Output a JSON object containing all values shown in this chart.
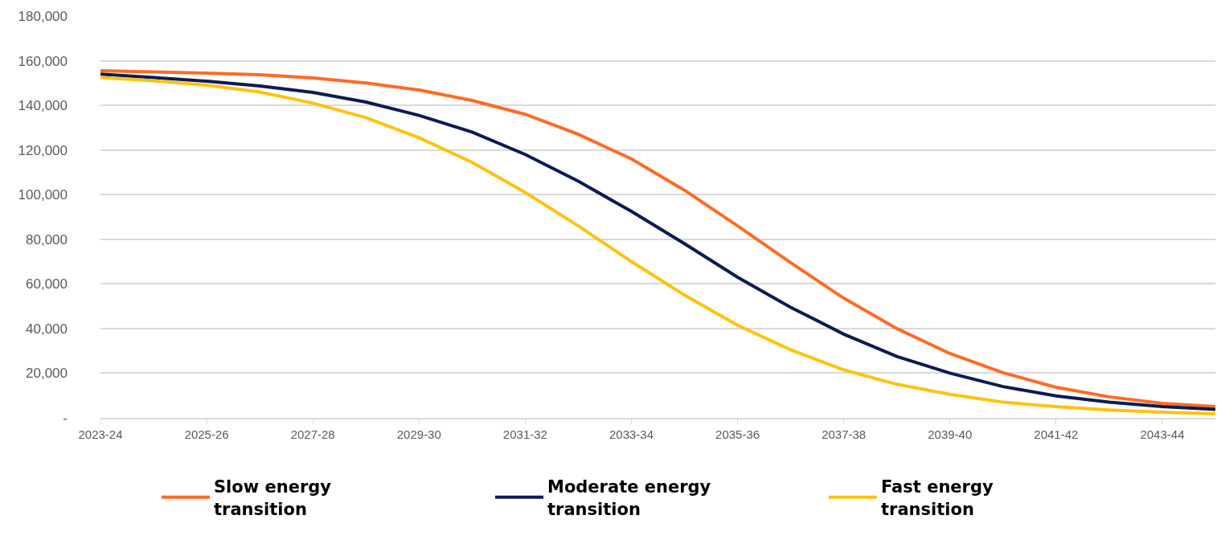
{
  "chart_data": {
    "type": "line",
    "categories": [
      "2023-24",
      null,
      "2025-26",
      null,
      "2027-28",
      null,
      "2029-30",
      null,
      "2031-32",
      null,
      "2033-34",
      null,
      "2035-36",
      null,
      "2037-38",
      null,
      "2039-40",
      null,
      "2041-42",
      null,
      "2043-44",
      null
    ],
    "series": [
      {
        "name": "Slow energy transition",
        "color": "#ff6b24",
        "values": [
          155500,
          155000,
          154400,
          153700,
          152300,
          150000,
          146900,
          142200,
          136000,
          127000,
          116000,
          102000,
          86000,
          69500,
          53600,
          40000,
          28800,
          20200,
          13700,
          9400,
          6500,
          5000
        ]
      },
      {
        "name": "Moderate energy transition",
        "color": "#0c1b52",
        "values": [
          154000,
          152500,
          150800,
          148700,
          145800,
          141500,
          135500,
          128000,
          118000,
          106000,
          92500,
          78000,
          63000,
          49500,
          37500,
          27500,
          20000,
          14000,
          9800,
          7000,
          5000,
          3800
        ]
      },
      {
        "name": "Fast energy transition",
        "color": "#ffc20e",
        "values": [
          152500,
          151000,
          149000,
          146000,
          141000,
          134500,
          125500,
          114500,
          101000,
          86000,
          70000,
          55000,
          41500,
          30500,
          21500,
          15000,
          10500,
          7000,
          5000,
          3500,
          2500,
          1800
        ]
      }
    ],
    "ylim": [
      0,
      180000
    ],
    "yticks": [
      {
        "value": 0,
        "label": "-"
      },
      {
        "value": 20000,
        "label": "20,000"
      },
      {
        "value": 40000,
        "label": "40,000"
      },
      {
        "value": 60000,
        "label": "60,000"
      },
      {
        "value": 80000,
        "label": "80,000"
      },
      {
        "value": 100000,
        "label": "100,000"
      },
      {
        "value": 120000,
        "label": "120,000"
      },
      {
        "value": 140000,
        "label": "140,000"
      },
      {
        "value": 160000,
        "label": "160,000"
      },
      {
        "value": 180000,
        "label": "180,000"
      }
    ],
    "grid": "y",
    "legend": "bottom",
    "marker": "none",
    "line_style": "solid"
  }
}
